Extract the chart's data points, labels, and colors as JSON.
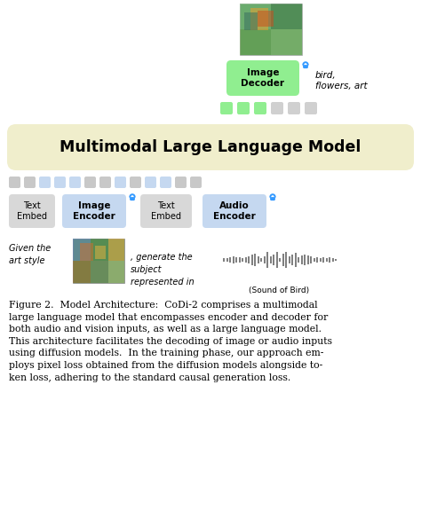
{
  "title": "Multimodal Large Language Model",
  "caption": "Figure 2.  Model Architecture:  CoDi-2 comprises a multimodal\nlarge language model that encompasses encoder and decoder for\nboth audio and vision inputs, as well as a large language model.\nThis architecture facilitates the decoding of image or audio inputs\nusing diffusion models.  In the training phase, our approach em-\nploys pixel loss obtained from the diffusion models alongside to-\nken loss, adhering to the standard causal generation loss.",
  "bg_color": "#ffffff",
  "green_sq_color": "#90EE90",
  "gray_sq_color": "#d0d0d0",
  "blue_sq_color": "#c5d8f0",
  "image_decoder_color": "#90EE90",
  "text_embed_color": "#d8d8d8",
  "encoder_color": "#c5d8f0",
  "main_box_color": "#f0eecc",
  "sound_label": "(Sound of Bird)",
  "bird_label": "bird,\nflowers, art",
  "given_text": "Given the\nart style",
  "generate_text": ", generate the\nsubject\nrepresented in",
  "lock_color": "#3399ff"
}
